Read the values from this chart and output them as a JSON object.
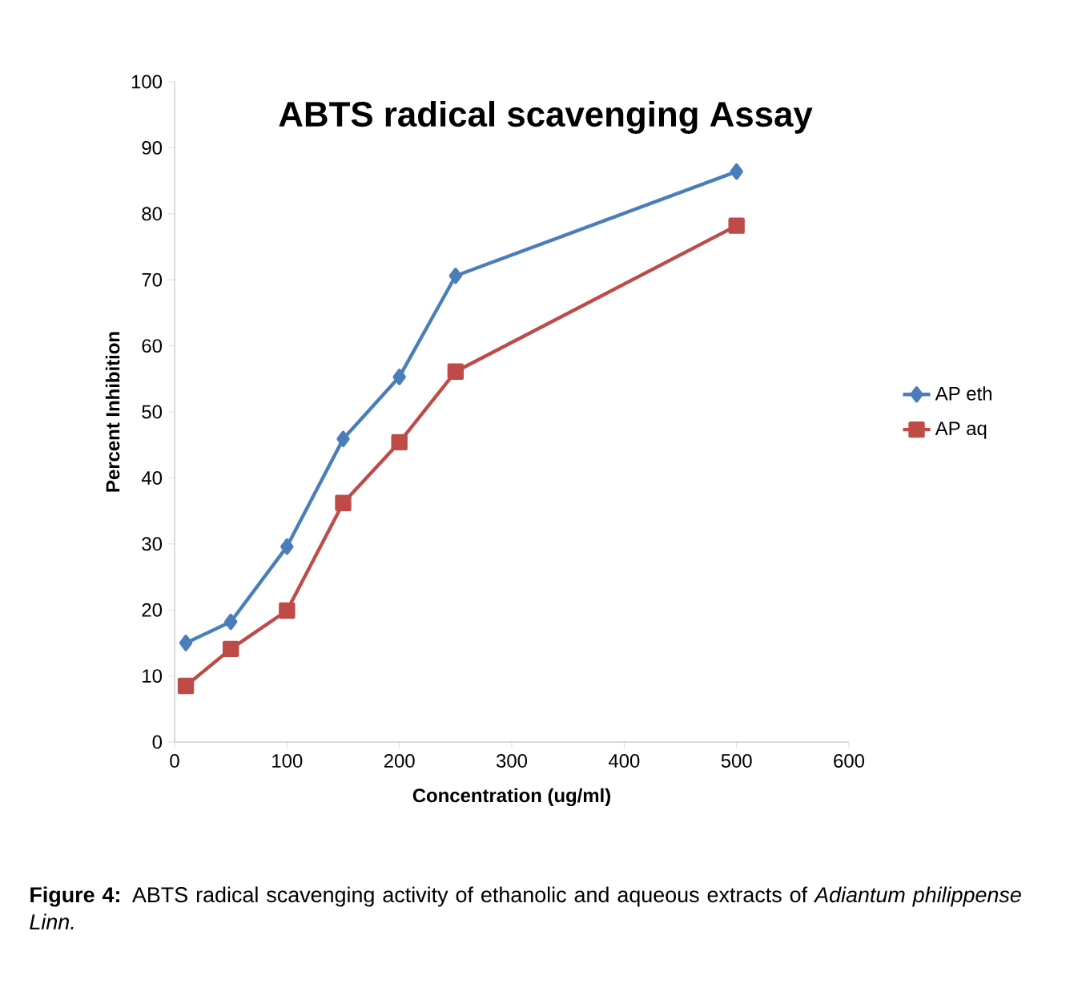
{
  "chart_data": {
    "type": "line",
    "title": "ABTS radical scavenging Assay",
    "xlabel": "Concentration (ug/ml)",
    "ylabel": "Percent Inhibition",
    "x": [
      10,
      50,
      100,
      150,
      200,
      250,
      500
    ],
    "series": [
      {
        "name": "AP eth",
        "color": "#4a7ebb",
        "marker": "diamond",
        "values": [
          15.0,
          18.2,
          29.6,
          45.9,
          55.3,
          70.6,
          86.4
        ]
      },
      {
        "name": "AP aq",
        "color": "#be4b48",
        "marker": "square",
        "values": [
          8.5,
          14.1,
          19.9,
          36.2,
          45.4,
          56.1,
          78.2
        ]
      }
    ],
    "xlim": [
      0,
      600
    ],
    "ylim": [
      0,
      100
    ],
    "xticks": [
      0,
      100,
      200,
      300,
      400,
      500,
      600
    ],
    "yticks": [
      0,
      10,
      20,
      30,
      40,
      50,
      60,
      70,
      80,
      90,
      100
    ],
    "grid": false,
    "legend": "right",
    "line_style": "solid",
    "annotations": [
      "**Figure 4:** ABTS radical scavenging activity of ethanolic and aqueous extracts of *Adiantum philippense Linn.*"
    ]
  }
}
